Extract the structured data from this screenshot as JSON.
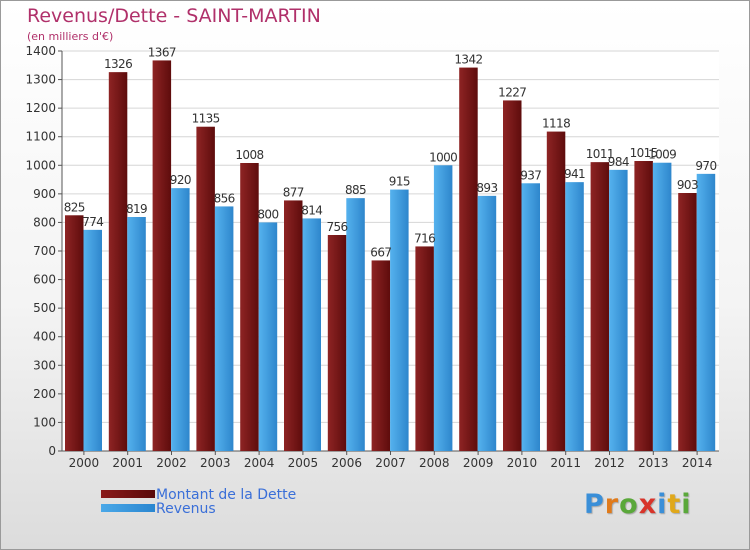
{
  "chart_data": {
    "type": "bar",
    "title": "Revenus/Dette - SAINT-MARTIN",
    "subtitle": "(en milliers d'€)",
    "categories": [
      "2000",
      "2001",
      "2002",
      "2003",
      "2004",
      "2005",
      "2006",
      "2007",
      "2008",
      "2009",
      "2010",
      "2011",
      "2012",
      "2013",
      "2014"
    ],
    "series": [
      {
        "name": "Montant de la Dette",
        "color": "#7a1a1a",
        "values": [
          825,
          1326,
          1367,
          1135,
          1008,
          877,
          756,
          667,
          716,
          1342,
          1227,
          1118,
          1011,
          1015,
          903
        ]
      },
      {
        "name": "Revenus",
        "color": "#3a9ae0",
        "values": [
          774,
          819,
          920,
          856,
          800,
          814,
          885,
          915,
          1000,
          893,
          937,
          941,
          984,
          1009,
          970
        ]
      }
    ],
    "ylim": [
      0,
      1400
    ],
    "yticks": [
      0,
      100,
      200,
      300,
      400,
      500,
      600,
      700,
      800,
      900,
      1000,
      1100,
      1200,
      1300,
      1400
    ],
    "grid": true,
    "legend_position": "bottom-left"
  },
  "logo": {
    "letters": [
      "P",
      "r",
      "o",
      "x",
      "i",
      "t",
      "i"
    ],
    "colors": [
      "#3a8fd8",
      "#e07a1a",
      "#5aa83a",
      "#d8342a",
      "#3a8fd8",
      "#e0a81a",
      "#5aa83a"
    ]
  }
}
